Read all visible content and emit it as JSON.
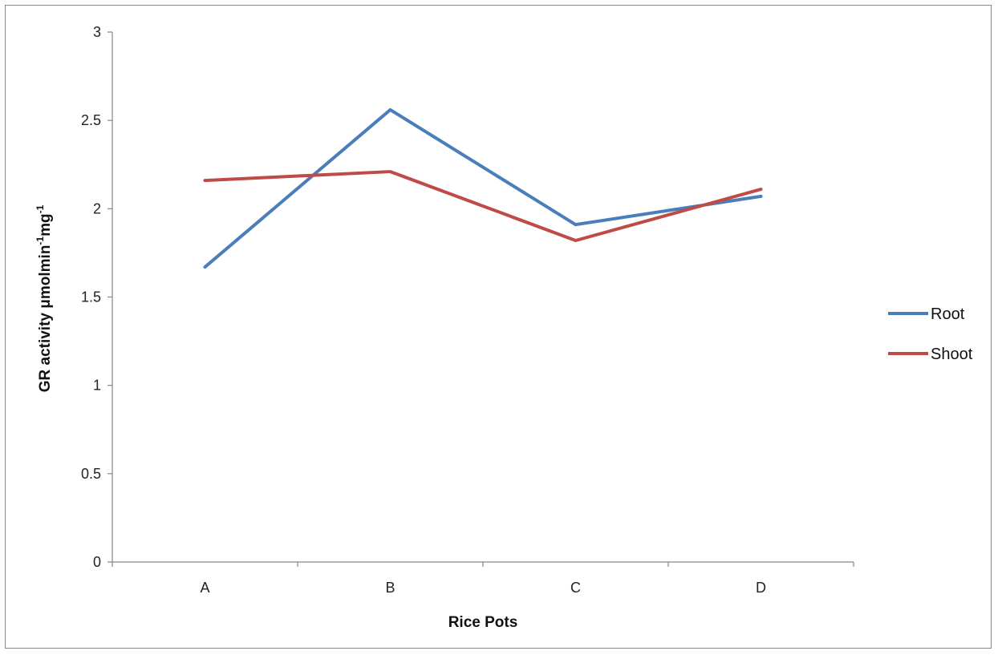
{
  "chart_data": {
    "type": "line",
    "categories": [
      "A",
      "B",
      "C",
      "D"
    ],
    "series": [
      {
        "name": "Root",
        "color": "#4a7ebb",
        "values": [
          1.67,
          2.56,
          1.91,
          2.07
        ]
      },
      {
        "name": "Shoot",
        "color": "#be4b48",
        "values": [
          2.16,
          2.21,
          1.82,
          2.11
        ]
      }
    ],
    "xlabel": "Rice Pots",
    "ylabel": {
      "text": "GR activity μmolmin",
      "sup1": "-1",
      "mid": "mg",
      "sup2": "-1"
    },
    "ylim": [
      0,
      3
    ],
    "yticks": [
      "0",
      "0.5",
      "1",
      "1.5",
      "2",
      "2.5",
      "3"
    ],
    "grid": false,
    "legend_position": "right"
  }
}
